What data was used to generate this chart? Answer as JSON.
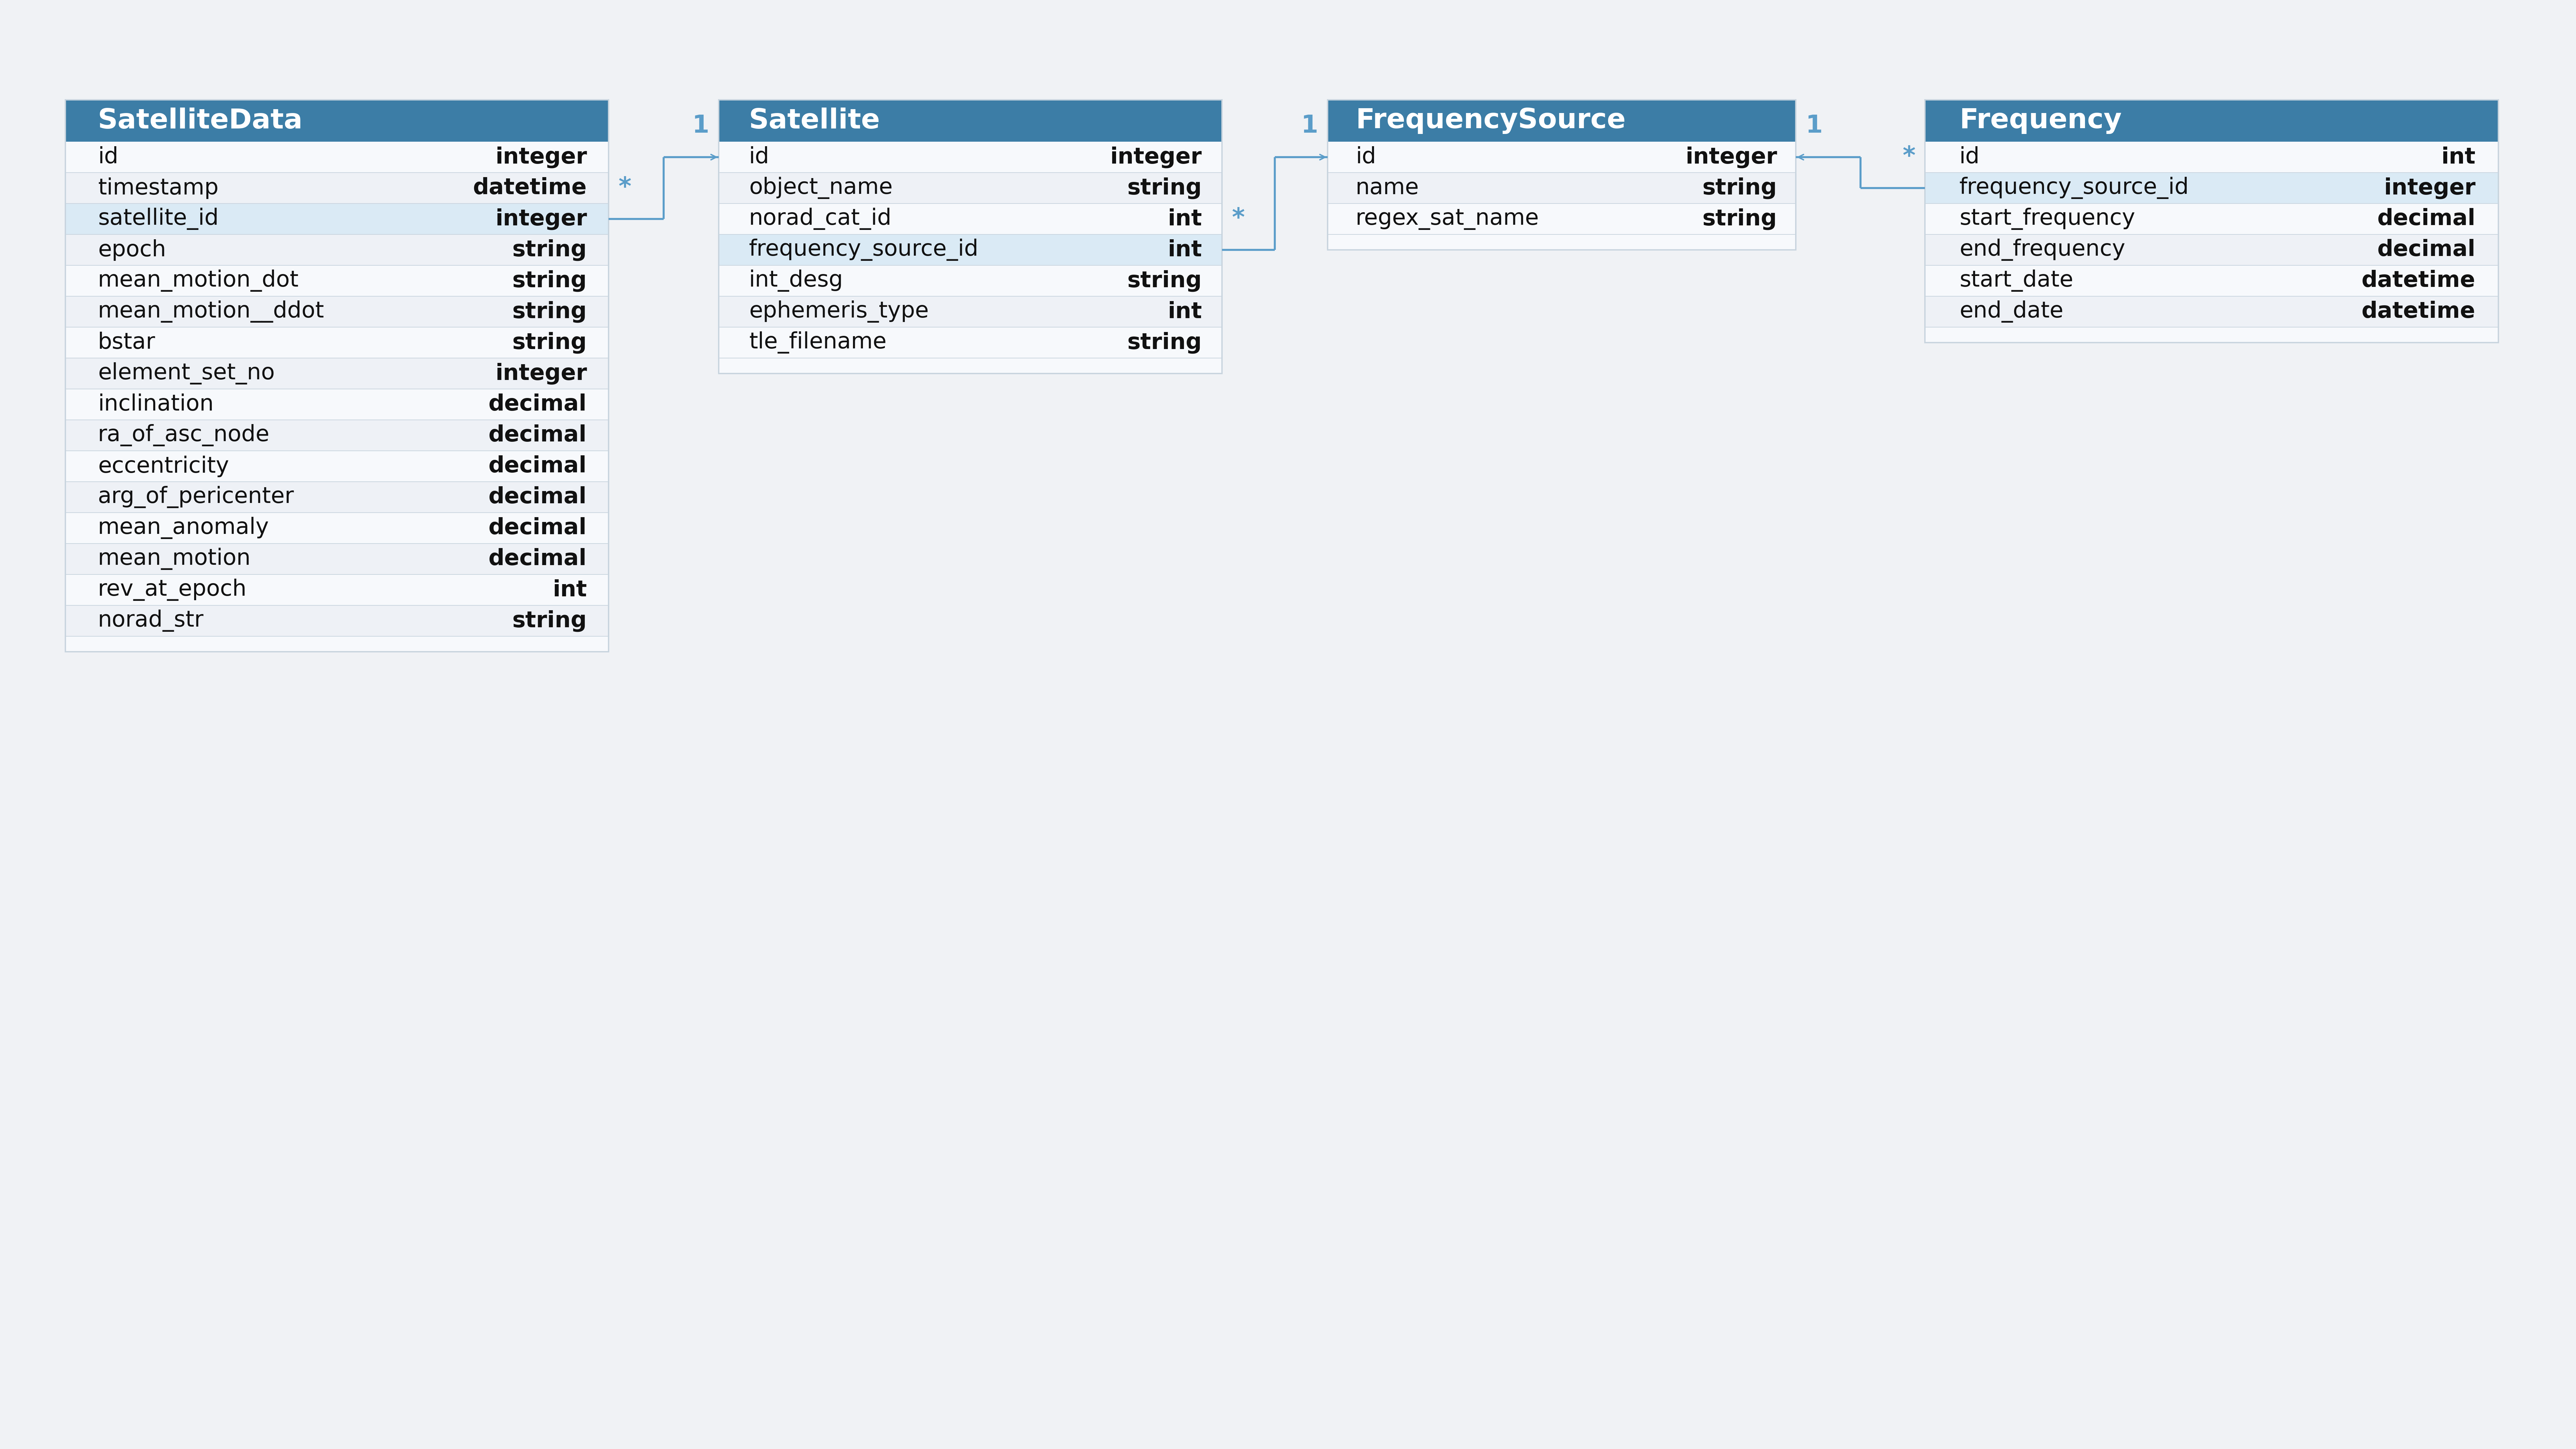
{
  "background_color": "#f0f2f5",
  "header_color": "#3c7da6",
  "header_text_color": "#ffffff",
  "row_bg_light": "#f7f9fc",
  "row_bg_mid": "#eef1f6",
  "row_highlight": "#daeaf5",
  "border_color": "#c8d4de",
  "text_color": "#111111",
  "connector_color": "#5b9dc9",
  "tables": [
    {
      "name": "SatelliteData",
      "fields": [
        {
          "name": "id",
          "type": "integer",
          "highlight": false
        },
        {
          "name": "timestamp",
          "type": "datetime",
          "highlight": false
        },
        {
          "name": "satellite_id",
          "type": "integer",
          "highlight": true
        },
        {
          "name": "epoch",
          "type": "string",
          "highlight": false
        },
        {
          "name": "mean_motion_dot",
          "type": "string",
          "highlight": false
        },
        {
          "name": "mean_motion__ddot",
          "type": "string",
          "highlight": false
        },
        {
          "name": "bstar",
          "type": "string",
          "highlight": false
        },
        {
          "name": "element_set_no",
          "type": "integer",
          "highlight": false
        },
        {
          "name": "inclination",
          "type": "decimal",
          "highlight": false
        },
        {
          "name": "ra_of_asc_node",
          "type": "decimal",
          "highlight": false
        },
        {
          "name": "eccentricity",
          "type": "decimal",
          "highlight": false
        },
        {
          "name": "arg_of_pericenter",
          "type": "decimal",
          "highlight": false
        },
        {
          "name": "mean_anomaly",
          "type": "decimal",
          "highlight": false
        },
        {
          "name": "mean_motion",
          "type": "decimal",
          "highlight": false
        },
        {
          "name": "rev_at_epoch",
          "type": "int",
          "highlight": false
        },
        {
          "name": "norad_str",
          "type": "string",
          "highlight": false
        }
      ]
    },
    {
      "name": "Satellite",
      "fields": [
        {
          "name": "id",
          "type": "integer",
          "highlight": false
        },
        {
          "name": "object_name",
          "type": "string",
          "highlight": false
        },
        {
          "name": "norad_cat_id",
          "type": "int",
          "highlight": false
        },
        {
          "name": "frequency_source_id",
          "type": "int",
          "highlight": true
        },
        {
          "name": "int_desg",
          "type": "string",
          "highlight": false
        },
        {
          "name": "ephemeris_type",
          "type": "int",
          "highlight": false
        },
        {
          "name": "tle_filename",
          "type": "string",
          "highlight": false
        }
      ]
    },
    {
      "name": "FrequencySource",
      "fields": [
        {
          "name": "id",
          "type": "integer",
          "highlight": false
        },
        {
          "name": "name",
          "type": "string",
          "highlight": false
        },
        {
          "name": "regex_sat_name",
          "type": "string",
          "highlight": false
        }
      ]
    },
    {
      "name": "Frequency",
      "fields": [
        {
          "name": "id",
          "type": "int",
          "highlight": false
        },
        {
          "name": "frequency_source_id",
          "type": "integer",
          "highlight": true
        },
        {
          "name": "start_frequency",
          "type": "decimal",
          "highlight": false
        },
        {
          "name": "end_frequency",
          "type": "decimal",
          "highlight": false
        },
        {
          "name": "start_date",
          "type": "datetime",
          "highlight": false
        },
        {
          "name": "end_date",
          "type": "datetime",
          "highlight": false
        }
      ]
    }
  ],
  "connections": [
    {
      "from_table": 0,
      "from_field": 2,
      "to_table": 1,
      "to_field": 0,
      "from_label": "*",
      "to_label": "1"
    },
    {
      "from_table": 1,
      "from_field": 3,
      "to_table": 2,
      "to_field": 0,
      "from_label": "*",
      "to_label": "1"
    },
    {
      "from_table": 3,
      "from_field": 1,
      "to_table": 2,
      "to_field": 0,
      "from_label": "*",
      "to_label": "1"
    }
  ]
}
